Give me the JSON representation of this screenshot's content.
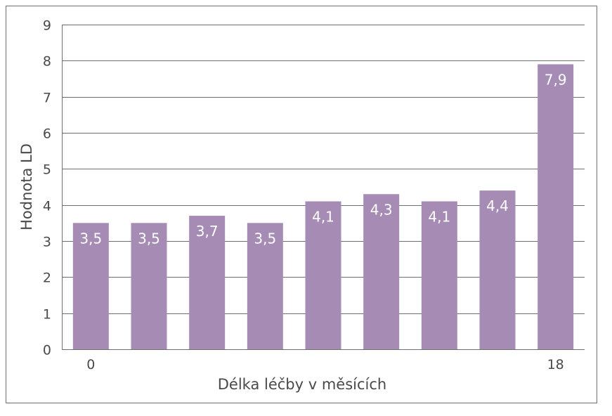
{
  "chart_data": {
    "type": "bar",
    "categories": [
      "0",
      "",
      "",
      "",
      "",
      "",
      "",
      "",
      "18"
    ],
    "values": [
      3.5,
      3.5,
      3.7,
      3.5,
      4.1,
      4.3,
      4.1,
      4.4,
      7.9
    ],
    "data_labels": [
      "3,5",
      "3,5",
      "3,7",
      "3,5",
      "4,1",
      "4,3",
      "4,1",
      "4,4",
      "7,9"
    ],
    "title": "",
    "xlabel": "Délka léčby v měsících",
    "ylabel": "Hodnota LD",
    "ylim": [
      0,
      9
    ],
    "yticks": [
      "0",
      "1",
      "2",
      "3",
      "4",
      "5",
      "6",
      "7",
      "8",
      "9"
    ],
    "grid": true,
    "legend": "none",
    "bar_color": "#a68bb5",
    "grid_color": "#6e6e6e"
  }
}
